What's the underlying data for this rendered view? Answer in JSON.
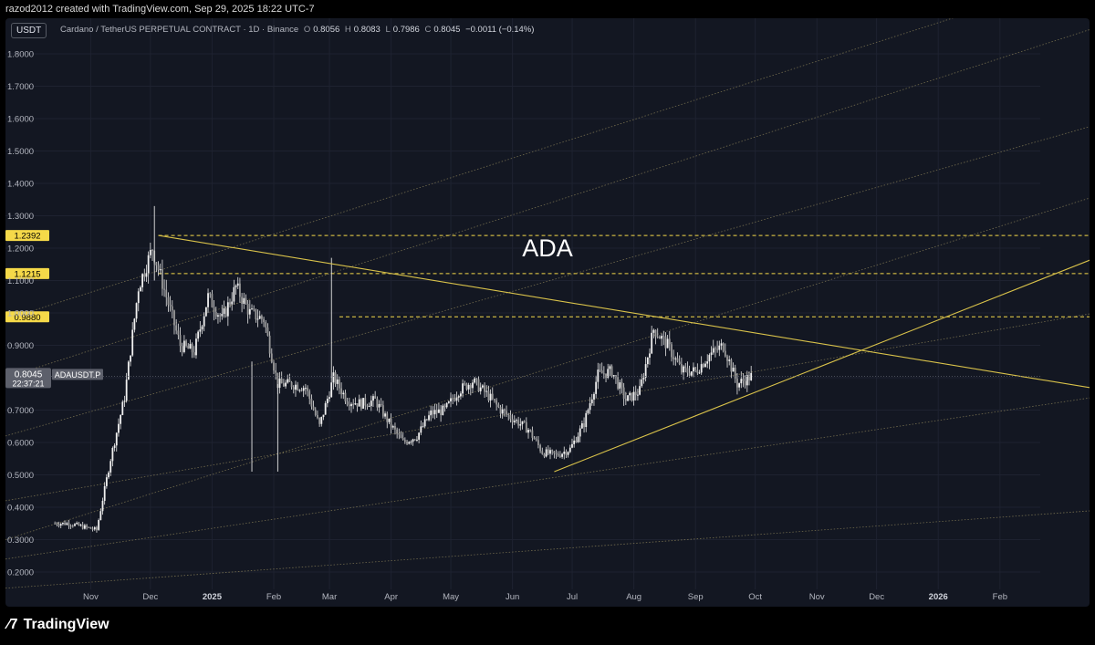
{
  "header_text": "razod2012 created with TradingView.com, Sep 29, 2025 18:22 UTC-7",
  "unit_badge": "USDT",
  "symbol": {
    "title": "Cardano / TetherUS PERPETUAL CONTRACT · 1D · Binance",
    "o_label": "O",
    "o": "0.8056",
    "h_label": "H",
    "h": "0.8083",
    "l_label": "L",
    "l": "0.7986",
    "c_label": "C",
    "c": "0.8045",
    "change": "−0.0011 (−0.14%)"
  },
  "price_tag": {
    "price": "0.8045",
    "countdown": "22:37:21",
    "ticker": "ADAUSDT.P"
  },
  "annotation": "ADA",
  "footer": {
    "logo_glyph": "⁄7",
    "brand": "TradingView"
  },
  "colors": {
    "panel_bg": "#131722",
    "grid": "#1e2230",
    "candle": "#e6e6e6",
    "level": "#f5d949",
    "trend": "#d9c24a",
    "channel": "#8a8158",
    "text": "#b2b5be"
  },
  "chart_data": {
    "type": "candlestick",
    "title": "Cardano / TetherUS PERPETUAL CONTRACT · 1D · Binance",
    "y_axis_ticks": [
      "0.2000",
      "0.3000",
      "0.4000",
      "0.5000",
      "0.6000",
      "0.7000",
      "0.8000",
      "0.9000",
      "1.0000",
      "1.1000",
      "1.2000",
      "1.3000",
      "1.4000",
      "1.5000",
      "1.6000",
      "1.7000",
      "1.8000"
    ],
    "x_axis_ticks": [
      "Nov",
      "Dec",
      "2025",
      "Feb",
      "Mar",
      "Apr",
      "May",
      "Jun",
      "Jul",
      "Aug",
      "Sep",
      "Oct",
      "Nov",
      "Dec",
      "2026",
      "Feb"
    ],
    "ylim": [
      0.16,
      1.88
    ],
    "grid": true,
    "price_levels": [
      {
        "label": "1.2392",
        "value": 1.2392
      },
      {
        "label": "1.1215",
        "value": 1.1215
      },
      {
        "label": "0.9880",
        "value": 0.988
      }
    ],
    "weekly_close_path": [
      [
        "2024-10-14",
        0.35
      ],
      [
        "2024-10-21",
        0.35
      ],
      [
        "2024-10-28",
        0.34
      ],
      [
        "2024-11-04",
        0.33
      ],
      [
        "2024-11-11",
        0.55
      ],
      [
        "2024-11-18",
        0.74
      ],
      [
        "2024-11-25",
        1.08
      ],
      [
        "2024-12-02",
        1.2
      ],
      [
        "2024-12-09",
        1.05
      ],
      [
        "2024-12-16",
        0.9
      ],
      [
        "2024-12-23",
        0.88
      ],
      [
        "2024-12-30",
        1.05
      ],
      [
        "2025-01-06",
        0.98
      ],
      [
        "2025-01-13",
        1.08
      ],
      [
        "2025-01-20",
        1.0
      ],
      [
        "2025-01-27",
        0.98
      ],
      [
        "2025-02-03",
        0.78
      ],
      [
        "2025-02-10",
        0.78
      ],
      [
        "2025-02-17",
        0.77
      ],
      [
        "2025-02-24",
        0.65
      ],
      [
        "2025-03-03",
        0.8
      ],
      [
        "2025-03-10",
        0.73
      ],
      [
        "2025-03-17",
        0.72
      ],
      [
        "2025-03-24",
        0.73
      ],
      [
        "2025-03-31",
        0.66
      ],
      [
        "2025-04-07",
        0.6
      ],
      [
        "2025-04-14",
        0.62
      ],
      [
        "2025-04-21",
        0.69
      ],
      [
        "2025-04-28",
        0.7
      ],
      [
        "2025-05-05",
        0.76
      ],
      [
        "2025-05-12",
        0.79
      ],
      [
        "2025-05-19",
        0.75
      ],
      [
        "2025-05-26",
        0.7
      ],
      [
        "2025-06-02",
        0.67
      ],
      [
        "2025-06-09",
        0.64
      ],
      [
        "2025-06-16",
        0.57
      ],
      [
        "2025-06-23",
        0.56
      ],
      [
        "2025-06-30",
        0.58
      ],
      [
        "2025-07-07",
        0.66
      ],
      [
        "2025-07-14",
        0.81
      ],
      [
        "2025-07-21",
        0.82
      ],
      [
        "2025-07-28",
        0.73
      ],
      [
        "2025-08-04",
        0.76
      ],
      [
        "2025-08-11",
        0.95
      ],
      [
        "2025-08-18",
        0.9
      ],
      [
        "2025-08-25",
        0.82
      ],
      [
        "2025-09-01",
        0.82
      ],
      [
        "2025-09-08",
        0.87
      ],
      [
        "2025-09-15",
        0.9
      ],
      [
        "2025-09-22",
        0.78
      ],
      [
        "2025-09-29",
        0.8045
      ]
    ],
    "trendlines": [
      {
        "from": [
          "2024-12-05",
          1.2392
        ],
        "to": [
          "2026-03-10",
          0.75
        ]
      },
      {
        "from": [
          "2025-06-22",
          0.51
        ],
        "to": [
          "2026-03-10",
          1.21
        ]
      }
    ],
    "last_price": 0.8045
  }
}
